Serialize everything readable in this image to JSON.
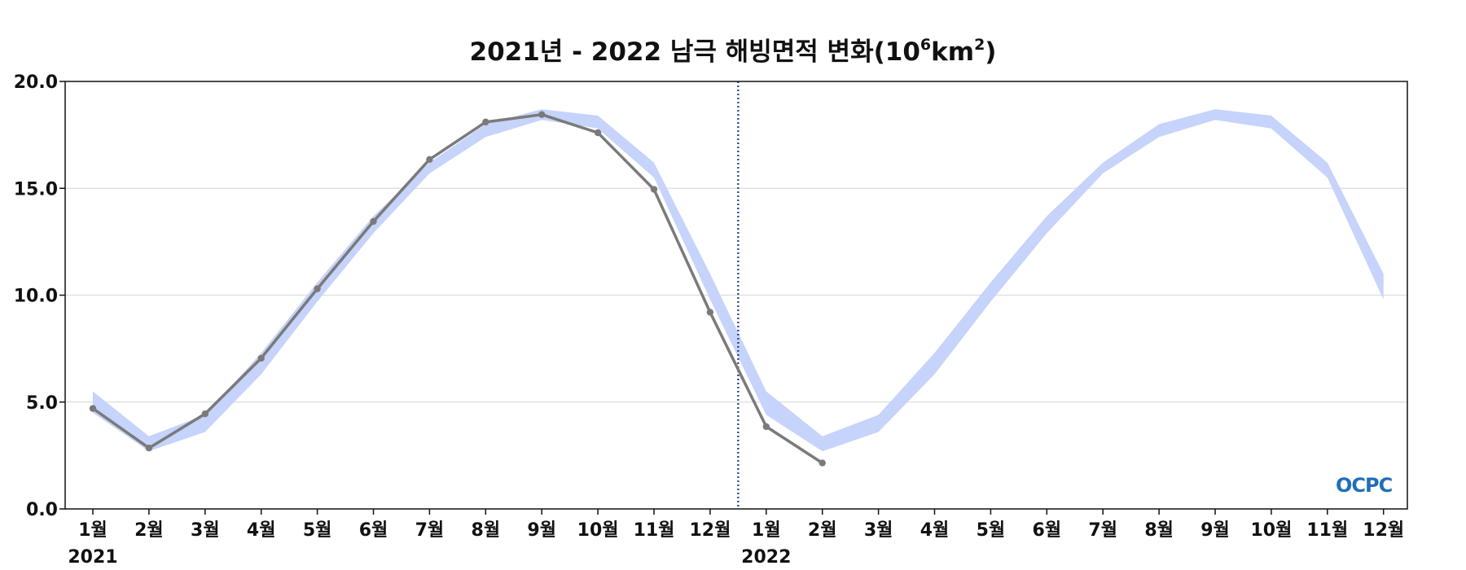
{
  "chart_data": {
    "type": "line",
    "title": {
      "prefix": "2021년 - 2022 남극 해빙면적 변화(10",
      "sup1": "6",
      "mid": "km",
      "sup2": "2",
      "suffix": ")"
    },
    "ylim": [
      0,
      20
    ],
    "yticks": [
      "0.0",
      "5.0",
      "10.0",
      "15.0",
      "20.0"
    ],
    "grid": "horizontal",
    "x_labels": [
      "1월",
      "2월",
      "3월",
      "4월",
      "5월",
      "6월",
      "7월",
      "8월",
      "9월",
      "10월",
      "11월",
      "12월",
      "1월",
      "2월",
      "3월",
      "4월",
      "5월",
      "6월",
      "7월",
      "8월",
      "9월",
      "10월",
      "11월",
      "12월"
    ],
    "year_labels": [
      {
        "index": 0,
        "text": "2021"
      },
      {
        "index": 12,
        "text": "2022"
      }
    ],
    "divider_between_index": 11.5,
    "band": {
      "lower": [
        4.5,
        2.7,
        3.6,
        6.3,
        9.7,
        12.9,
        15.7,
        17.4,
        18.2,
        17.8,
        15.5,
        9.8,
        4.4,
        2.7,
        3.6,
        6.3,
        9.7,
        12.9,
        15.7,
        17.4,
        18.2,
        17.8,
        15.5,
        9.8
      ],
      "upper": [
        5.5,
        3.4,
        4.4,
        7.3,
        10.6,
        13.7,
        16.2,
        18.0,
        18.7,
        18.4,
        16.2,
        11.0,
        5.5,
        3.4,
        4.4,
        7.3,
        10.6,
        13.7,
        16.2,
        18.0,
        18.7,
        18.4,
        16.2,
        11.0
      ],
      "color": "#c6d3fb"
    },
    "series": [
      {
        "values": [
          4.7,
          2.85,
          4.45,
          7.05,
          10.3,
          13.45,
          16.35,
          18.1,
          18.45,
          17.6,
          14.95,
          9.2,
          3.85,
          2.15
        ],
        "color": "#7a7a7a"
      }
    ],
    "divider_color": "#1f3c88"
  },
  "logo": {
    "text": "OCPC",
    "color": "#1f6fb8"
  }
}
